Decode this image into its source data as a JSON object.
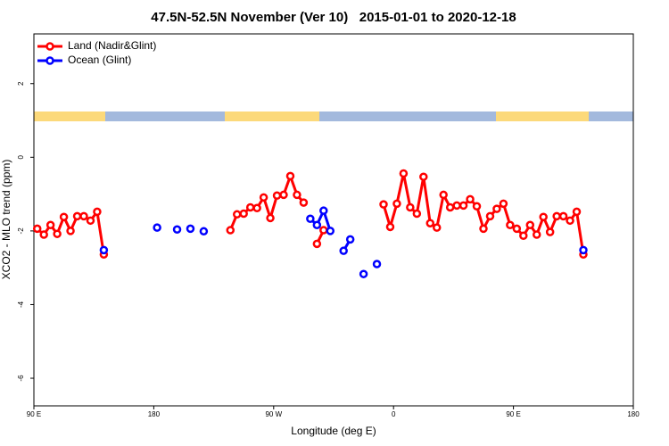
{
  "chart_data": {
    "type": "line",
    "title": "47.5N-52.5N November (Ver 10)   2015-01-01 to 2020-12-18",
    "x_label": "Longitude (deg E)",
    "y_label": "XCO2 - MLO trend (ppm)",
    "legend": "topleft",
    "xlim": [
      90,
      540
    ],
    "xticks": [
      {
        "value": 90,
        "label": "90 E"
      },
      180,
      {
        "value": 270,
        "label": "90 W"
      },
      {
        "value": 360,
        "label": "0"
      },
      {
        "value": 450,
        "label": "90 E"
      },
      {
        "value": 540,
        "label": "180"
      }
    ],
    "ylim": [
      -6.75,
      3.35
    ],
    "yticks": [
      2,
      0,
      -2,
      -4,
      -6
    ],
    "x": [
      92.5,
      97.5,
      102.5,
      107.5,
      112.5,
      117.5,
      122.5,
      127.5,
      132.5,
      137.5,
      142.5,
      147.5,
      152.5,
      157.5,
      162.5,
      167.5,
      172.5,
      177.5,
      182.5,
      187.5,
      192.5,
      197.5,
      202.5,
      207.5,
      212.5,
      217.5,
      222.5,
      227.5,
      232.5,
      237.5,
      242.5,
      247.5,
      252.5,
      257.5,
      262.5,
      267.5,
      272.5,
      277.5,
      282.5,
      287.5,
      292.5,
      297.5,
      302.5,
      307.5,
      312.5,
      317.5,
      322.5,
      327.5,
      332.5,
      337.5,
      342.5,
      347.5,
      352.5,
      357.5,
      362.5,
      367.5,
      372.5,
      377.5,
      382.5,
      387.5,
      392.5,
      397.5,
      402.5,
      407.5,
      412.5,
      417.5,
      422.5,
      427.5,
      432.5,
      437.5,
      442.5,
      447.5,
      452.5,
      457.5,
      462.5,
      467.5,
      472.5,
      477.5,
      482.5,
      487.5,
      492.5,
      497.5,
      502.5
    ],
    "series": [
      {
        "name": "Land (Nadir&Glint)",
        "color": "#ff0000",
        "values": [
          -1.94,
          -2.1,
          -1.84,
          -2.08,
          -1.62,
          -2.0,
          -1.6,
          -1.6,
          -1.72,
          -1.48,
          -2.64,
          null,
          null,
          null,
          null,
          null,
          null,
          null,
          null,
          null,
          null,
          null,
          null,
          null,
          null,
          null,
          null,
          null,
          null,
          -1.98,
          -1.55,
          -1.53,
          -1.36,
          -1.38,
          -1.09,
          -1.65,
          -1.04,
          -1.02,
          -0.51,
          -1.02,
          -1.23,
          null,
          -2.35,
          -1.98,
          null,
          null,
          null,
          null,
          null,
          null,
          null,
          null,
          -1.28,
          -1.89,
          -1.26,
          -0.44,
          -1.36,
          -1.53,
          -0.53,
          -1.79,
          -1.91,
          -1.02,
          -1.36,
          -1.31,
          -1.31,
          -1.14,
          -1.33,
          -1.94,
          -1.6,
          -1.4,
          -1.26,
          -1.84,
          -1.94,
          -2.13,
          -1.84,
          -2.1,
          -1.62,
          -2.03,
          -1.6,
          -1.6,
          -1.72,
          -1.48,
          -2.64
        ]
      },
      {
        "name": "Ocean (Glint)",
        "color": "#0000ff",
        "values": [
          null,
          null,
          null,
          null,
          null,
          null,
          null,
          null,
          null,
          null,
          -2.52,
          null,
          null,
          null,
          null,
          null,
          null,
          null,
          -1.91,
          null,
          null,
          -1.96,
          null,
          -1.94,
          null,
          -2.01,
          null,
          null,
          null,
          null,
          null,
          null,
          null,
          null,
          null,
          null,
          null,
          null,
          null,
          null,
          null,
          -1.67,
          -1.84,
          -1.45,
          -2.0,
          null,
          -2.54,
          -2.23,
          null,
          -3.17,
          null,
          -2.9,
          null,
          null,
          null,
          null,
          null,
          null,
          null,
          null,
          null,
          null,
          null,
          null,
          null,
          null,
          null,
          null,
          null,
          null,
          null,
          null,
          null,
          null,
          null,
          null,
          null,
          null,
          null,
          null,
          null,
          null,
          -2.52
        ]
      }
    ]
  }
}
